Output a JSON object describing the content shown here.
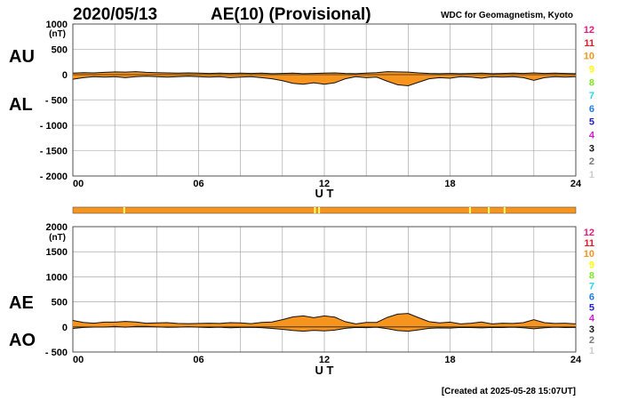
{
  "header": {
    "date": "2020/05/13",
    "title": "AE(10) (Provisional)",
    "source": "WDC for Geomagnetism, Kyoto"
  },
  "footer": {
    "created": "[Created at 2025-05-28 15:07UT]"
  },
  "colors": {
    "fill": "#f7941d",
    "grid": "#9a9a9a",
    "status_bar": "#f7941d",
    "status_mark": "#ffff66"
  },
  "scale_levels": [
    {
      "label": "12",
      "color": "#e8197d"
    },
    {
      "label": "11",
      "color": "#e8192b"
    },
    {
      "label": "10",
      "color": "#f7941d"
    },
    {
      "label": "9",
      "color": "#ffff00"
    },
    {
      "label": "8",
      "color": "#7fe628"
    },
    {
      "label": "7",
      "color": "#22d8e6"
    },
    {
      "label": "6",
      "color": "#1a7fe6"
    },
    {
      "label": "5",
      "color": "#2222cc"
    },
    {
      "label": "4",
      "color": "#cc22cc"
    },
    {
      "label": "3",
      "color": "#111111"
    },
    {
      "label": "2",
      "color": "#777777"
    },
    {
      "label": "1",
      "color": "#cccccc"
    }
  ],
  "status_bar": {
    "ticks_hours": [
      2.45,
      11.55,
      11.75,
      18.95,
      19.85,
      20.6
    ]
  },
  "chart_data": [
    {
      "type": "area",
      "panel": "AU/AL",
      "series": [
        {
          "name": "AU",
          "x": [
            0,
            0.5,
            1,
            1.5,
            2,
            2.5,
            3,
            3.5,
            4,
            4.5,
            5,
            5.5,
            6,
            6.5,
            7,
            7.5,
            8,
            8.5,
            9,
            9.5,
            10,
            10.5,
            11,
            11.5,
            12,
            12.5,
            13,
            13.5,
            14,
            14.5,
            15,
            15.5,
            16,
            16.5,
            17,
            17.5,
            18,
            18.5,
            19,
            19.5,
            20,
            20.5,
            21,
            21.5,
            22,
            22.5,
            23,
            23.5,
            24
          ],
          "y": [
            30,
            40,
            35,
            45,
            55,
            50,
            60,
            45,
            40,
            35,
            30,
            35,
            30,
            25,
            30,
            25,
            30,
            25,
            30,
            20,
            25,
            30,
            20,
            25,
            30,
            35,
            25,
            20,
            30,
            40,
            60,
            55,
            50,
            35,
            25,
            20,
            25,
            20,
            25,
            30,
            20,
            25,
            30,
            25,
            35,
            25,
            30,
            25,
            20
          ]
        },
        {
          "name": "AL",
          "x": [
            0,
            0.5,
            1,
            1.5,
            2,
            2.5,
            3,
            3.5,
            4,
            4.5,
            5,
            5.5,
            6,
            6.5,
            7,
            7.5,
            8,
            8.5,
            9,
            9.5,
            10,
            10.5,
            11,
            11.5,
            12,
            12.5,
            13,
            13.5,
            14,
            14.5,
            15,
            15.5,
            16,
            16.5,
            17,
            17.5,
            18,
            18.5,
            19,
            19.5,
            20,
            20.5,
            21,
            21.5,
            22,
            22.5,
            23,
            23.5,
            24
          ],
          "y": [
            -90,
            -60,
            -40,
            -50,
            -40,
            -60,
            -40,
            -30,
            -40,
            -50,
            -40,
            -30,
            -40,
            -50,
            -40,
            -60,
            -50,
            -40,
            -60,
            -80,
            -120,
            -170,
            -190,
            -160,
            -190,
            -160,
            -80,
            -40,
            -60,
            -50,
            -130,
            -200,
            -220,
            -150,
            -80,
            -60,
            -70,
            -40,
            -50,
            -70,
            -40,
            -50,
            -40,
            -60,
            -110,
            -60,
            -40,
            -50,
            -40
          ]
        }
      ],
      "ylabels": [
        "AU",
        "AL"
      ],
      "ylim": [
        -2000,
        1000
      ],
      "yticks": [
        1000,
        500,
        0,
        -500,
        -1000,
        -1500,
        -2000
      ],
      "yunit": "(nT)",
      "xticks": [
        0,
        6,
        12,
        18,
        24
      ],
      "xticklabels": [
        "00",
        "06",
        "12",
        "18",
        "24"
      ],
      "xlabel": "U T",
      "grid": true
    },
    {
      "type": "area",
      "panel": "AE/AO",
      "series": [
        {
          "name": "AE",
          "x": [
            0,
            0.5,
            1,
            1.5,
            2,
            2.5,
            3,
            3.5,
            4,
            4.5,
            5,
            5.5,
            6,
            6.5,
            7,
            7.5,
            8,
            8.5,
            9,
            9.5,
            10,
            10.5,
            11,
            11.5,
            12,
            12.5,
            13,
            13.5,
            14,
            14.5,
            15,
            15.5,
            16,
            16.5,
            17,
            17.5,
            18,
            18.5,
            19,
            19.5,
            20,
            20.5,
            21,
            21.5,
            22,
            22.5,
            23,
            23.5,
            24
          ],
          "y": [
            130,
            90,
            75,
            95,
            95,
            110,
            100,
            75,
            80,
            85,
            70,
            65,
            70,
            75,
            70,
            85,
            80,
            65,
            90,
            100,
            145,
            200,
            220,
            185,
            220,
            195,
            105,
            60,
            90,
            90,
            190,
            255,
            270,
            185,
            105,
            80,
            95,
            60,
            75,
            100,
            60,
            75,
            70,
            85,
            145,
            85,
            70,
            75,
            60
          ]
        },
        {
          "name": "AO",
          "x": [
            0,
            0.5,
            1,
            1.5,
            2,
            2.5,
            3,
            3.5,
            4,
            4.5,
            5,
            5.5,
            6,
            6.5,
            7,
            7.5,
            8,
            8.5,
            9,
            9.5,
            10,
            10.5,
            11,
            11.5,
            12,
            12.5,
            13,
            13.5,
            14,
            14.5,
            15,
            15.5,
            16,
            16.5,
            17,
            17.5,
            18,
            18.5,
            19,
            19.5,
            20,
            20.5,
            21,
            21.5,
            22,
            22.5,
            23,
            23.5,
            24
          ],
          "y": [
            -30,
            -10,
            -3,
            -3,
            8,
            -5,
            10,
            8,
            0,
            -8,
            -5,
            3,
            -5,
            -13,
            -5,
            -18,
            -10,
            -8,
            -15,
            -30,
            -48,
            -70,
            -85,
            -68,
            -80,
            -63,
            -28,
            -10,
            -15,
            -5,
            -35,
            -73,
            -85,
            -58,
            -28,
            -20,
            -23,
            -10,
            -13,
            -20,
            -10,
            -13,
            -5,
            -18,
            -38,
            -18,
            -5,
            -13,
            -10
          ]
        }
      ],
      "ylabels": [
        "AE",
        "AO"
      ],
      "ylim": [
        -500,
        2000
      ],
      "yticks": [
        2000,
        1500,
        1000,
        500,
        0,
        -500
      ],
      "yunit": "(nT)",
      "xticks": [
        0,
        6,
        12,
        18,
        24
      ],
      "xticklabels": [
        "00",
        "06",
        "12",
        "18",
        "24"
      ],
      "xlabel": "U T",
      "grid": true
    }
  ]
}
